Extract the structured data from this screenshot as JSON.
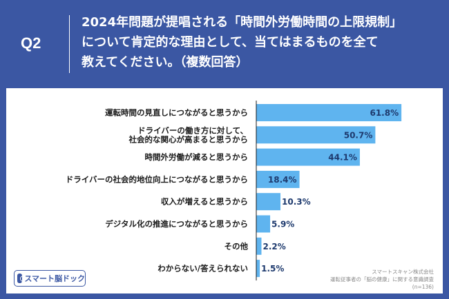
{
  "header": {
    "question_label": "Q2",
    "question_lines": [
      "2024年問題が提唱される「時間外労働時間の上限規制」",
      "について肯定的な理由として、当てはまるものを全て",
      "教えてください。（複数回答）"
    ]
  },
  "logo": {
    "text": "スマート脳ドック"
  },
  "source": {
    "lines": [
      "スマートスキャン株式会社",
      "運転従事者の「脳の健康」に関する意識調査",
      "(n=136)"
    ]
  },
  "colors": {
    "header_bg": "#3b57a3",
    "bar": "#5fb4ef",
    "axis": "#1a1a1a"
  },
  "chart_data": {
    "type": "bar",
    "orientation": "horizontal",
    "categories": [
      [
        "運転時間の見直しにつながると思うから"
      ],
      [
        "ドライバーの働き方に対して、",
        "社会的な関心が高まると思うから"
      ],
      [
        "時間外労働が減ると思うから"
      ],
      [
        "ドライバーの社会的地位向上につながると思うから"
      ],
      [
        "収入が増えると思うから"
      ],
      [
        "デジタル化の推進につながると思うから"
      ],
      [
        "その他"
      ],
      [
        "わからない/答えられない"
      ]
    ],
    "values": [
      61.8,
      50.7,
      44.1,
      18.4,
      10.3,
      5.9,
      2.2,
      1.5
    ],
    "value_labels": [
      "61.8%",
      "50.7%",
      "44.1%",
      "18.4%",
      "10.3%",
      "5.9%",
      "2.2%",
      "1.5%"
    ],
    "xlim": [
      0,
      100
    ],
    "grid": false,
    "legend": false
  }
}
